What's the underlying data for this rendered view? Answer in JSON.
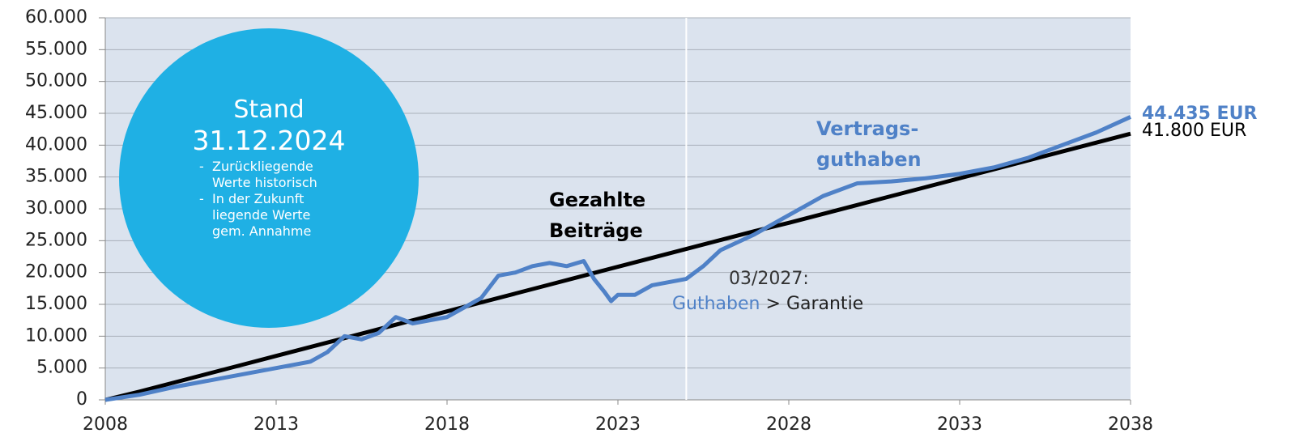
{
  "chart_data": {
    "type": "line",
    "xlim": [
      2008,
      2038
    ],
    "xticks": [
      2008,
      2013,
      2018,
      2023,
      2028,
      2033,
      2038
    ],
    "ylim": [
      0,
      60000
    ],
    "yticks": [
      0,
      {
        "value": 5000,
        "label": "5.000"
      },
      {
        "value": 10000,
        "label": "10.000"
      },
      {
        "value": 15000,
        "label": "15.000"
      },
      {
        "value": 20000,
        "label": "20.000"
      },
      {
        "value": 25000,
        "label": "25.000"
      },
      {
        "value": 30000,
        "label": "30.000"
      },
      {
        "value": 35000,
        "label": "35.000"
      },
      {
        "value": 40000,
        "label": "40.000"
      },
      {
        "value": 45000,
        "label": "45.000"
      },
      {
        "value": 50000,
        "label": "50.000"
      },
      {
        "value": 55000,
        "label": "55.000"
      },
      {
        "value": 60000,
        "label": "60.000"
      }
    ],
    "grid": true,
    "plot_background": "#dbe3ee",
    "series": [
      {
        "name": "Gezahlte Beiträge",
        "color": "#000000",
        "x": [
          2008,
          2009,
          2010,
          2011,
          2012,
          2013,
          2014,
          2015,
          2016,
          2017,
          2018,
          2019,
          2020,
          2021,
          2022,
          2023,
          2024,
          2025,
          2026,
          2027,
          2028,
          2029,
          2030,
          2031,
          2032,
          2033,
          2034,
          2035,
          2036,
          2037,
          2038
        ],
        "values": [
          0,
          1300,
          2700,
          4100,
          5500,
          6900,
          8300,
          9700,
          11100,
          12500,
          13900,
          15300,
          16700,
          18100,
          19500,
          20900,
          22300,
          23700,
          25100,
          26500,
          27800,
          29200,
          30600,
          32000,
          33400,
          34800,
          36200,
          37600,
          39000,
          40400,
          41800
        ],
        "end_label": "41.800 EUR"
      },
      {
        "name": "Vertrags-guthaben",
        "color": "#4f81c7",
        "x": [
          2008,
          2009,
          2010,
          2011,
          2012,
          2013,
          2014,
          2014.5,
          2015,
          2015.5,
          2016,
          2016.5,
          2017,
          2018,
          2018.5,
          2019,
          2019.5,
          2020,
          2020.5,
          2021,
          2021.5,
          2022,
          2022.3,
          2022.6,
          2022.8,
          2023,
          2023.5,
          2024,
          2025,
          2025.5,
          2026,
          2027,
          2028,
          2029,
          2030,
          2031,
          2032,
          2033,
          2034,
          2035,
          2036,
          2037,
          2038
        ],
        "values": [
          0,
          800,
          2000,
          3000,
          4000,
          5000,
          6000,
          7500,
          10000,
          9500,
          10500,
          13000,
          12000,
          13000,
          14500,
          16000,
          19500,
          20000,
          21000,
          21500,
          21000,
          21800,
          19000,
          17000,
          15500,
          16500,
          16500,
          18000,
          19000,
          21000,
          23500,
          26000,
          29000,
          32000,
          34000,
          34300,
          34800,
          35500,
          36500,
          38000,
          40000,
          42000,
          44435
        ],
        "end_label": "44.435 EUR"
      }
    ],
    "today_line_x": 2025,
    "status_box": {
      "title": "Stand",
      "date": "31.12.2024",
      "items": [
        "Zurückliegende Werte historisch",
        "In der Zukunft liegende Werte gem. Annahme"
      ]
    },
    "annotation": {
      "date": "03/2027:",
      "parts": [
        "Guthaben",
        ">",
        "Garantie"
      ]
    }
  }
}
